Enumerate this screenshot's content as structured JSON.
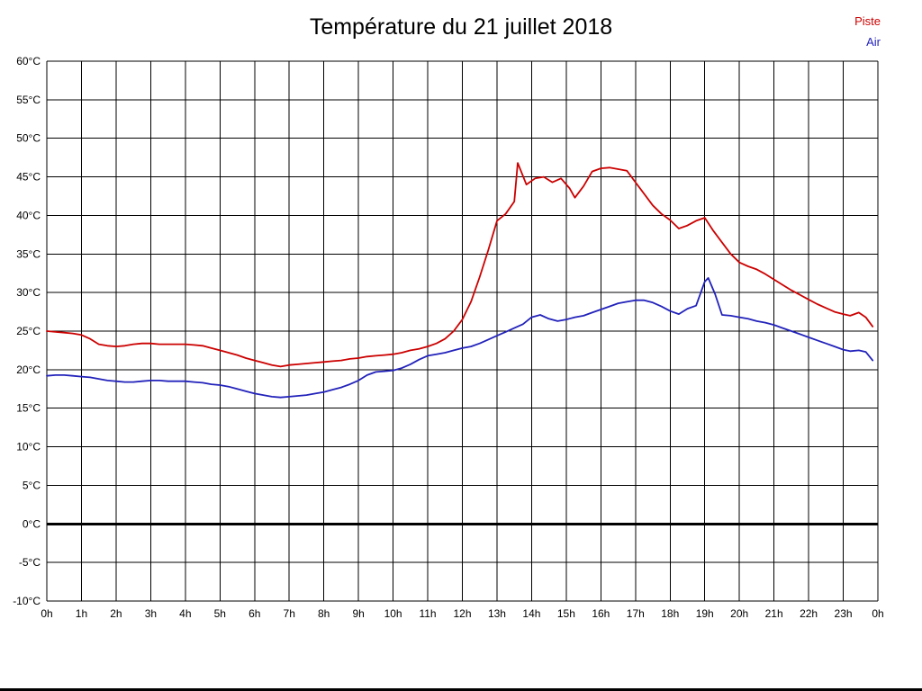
{
  "legend": {
    "piste": "Piste",
    "air": "Air"
  },
  "chart_data": {
    "type": "line",
    "title": "Température du 21 juillet 2018",
    "xlabel": "",
    "ylabel": "",
    "xlim": [
      0,
      24
    ],
    "ylim": [
      -10,
      60
    ],
    "y_tick_step": 5,
    "y_tick_suffix": "°C",
    "x_tick_labels": [
      "0h",
      "1h",
      "2h",
      "3h",
      "4h",
      "5h",
      "6h",
      "7h",
      "8h",
      "9h",
      "10h",
      "11h",
      "12h",
      "13h",
      "14h",
      "15h",
      "16h",
      "17h",
      "18h",
      "19h",
      "20h",
      "21h",
      "22h",
      "23h",
      "0h"
    ],
    "grid": true,
    "grid_color": "#000000",
    "zero_line_value": 0,
    "legend_position": "top-right",
    "series": [
      {
        "name": "Piste",
        "color": "#cc0000",
        "points": [
          [
            0,
            25.0
          ],
          [
            0.25,
            24.9
          ],
          [
            0.5,
            24.8
          ],
          [
            0.75,
            24.7
          ],
          [
            1,
            24.5
          ],
          [
            1.25,
            24.0
          ],
          [
            1.5,
            23.3
          ],
          [
            1.75,
            23.1
          ],
          [
            2,
            23.0
          ],
          [
            2.25,
            23.1
          ],
          [
            2.5,
            23.3
          ],
          [
            2.75,
            23.4
          ],
          [
            3,
            23.4
          ],
          [
            3.25,
            23.3
          ],
          [
            3.5,
            23.3
          ],
          [
            3.75,
            23.3
          ],
          [
            4,
            23.3
          ],
          [
            4.25,
            23.2
          ],
          [
            4.5,
            23.1
          ],
          [
            4.75,
            22.8
          ],
          [
            5,
            22.5
          ],
          [
            5.25,
            22.2
          ],
          [
            5.5,
            21.9
          ],
          [
            5.75,
            21.5
          ],
          [
            6,
            21.2
          ],
          [
            6.25,
            20.9
          ],
          [
            6.5,
            20.6
          ],
          [
            6.75,
            20.4
          ],
          [
            7,
            20.6
          ],
          [
            7.25,
            20.7
          ],
          [
            7.5,
            20.8
          ],
          [
            7.75,
            20.9
          ],
          [
            8,
            21.0
          ],
          [
            8.25,
            21.1
          ],
          [
            8.5,
            21.2
          ],
          [
            8.75,
            21.4
          ],
          [
            9,
            21.5
          ],
          [
            9.25,
            21.7
          ],
          [
            9.5,
            21.8
          ],
          [
            9.75,
            21.9
          ],
          [
            10,
            22.0
          ],
          [
            10.25,
            22.2
          ],
          [
            10.5,
            22.5
          ],
          [
            10.75,
            22.7
          ],
          [
            11,
            23.0
          ],
          [
            11.25,
            23.4
          ],
          [
            11.5,
            24.0
          ],
          [
            11.75,
            25.0
          ],
          [
            12,
            26.5
          ],
          [
            12.25,
            28.8
          ],
          [
            12.5,
            32.0
          ],
          [
            12.75,
            35.5
          ],
          [
            13,
            39.3
          ],
          [
            13.25,
            40.2
          ],
          [
            13.5,
            41.8
          ],
          [
            13.6,
            46.8
          ],
          [
            13.85,
            44.0
          ],
          [
            14.1,
            44.8
          ],
          [
            14.35,
            45.0
          ],
          [
            14.6,
            44.3
          ],
          [
            14.85,
            44.8
          ],
          [
            15.1,
            43.5
          ],
          [
            15.25,
            42.3
          ],
          [
            15.5,
            43.8
          ],
          [
            15.75,
            45.7
          ],
          [
            16,
            46.1
          ],
          [
            16.25,
            46.2
          ],
          [
            16.5,
            46.0
          ],
          [
            16.75,
            45.8
          ],
          [
            17,
            44.3
          ],
          [
            17.25,
            42.8
          ],
          [
            17.5,
            41.3
          ],
          [
            17.75,
            40.2
          ],
          [
            18,
            39.4
          ],
          [
            18.25,
            38.3
          ],
          [
            18.5,
            38.7
          ],
          [
            18.75,
            39.3
          ],
          [
            19,
            39.7
          ],
          [
            19.25,
            38.0
          ],
          [
            19.5,
            36.5
          ],
          [
            19.75,
            35.0
          ],
          [
            20,
            33.9
          ],
          [
            20.25,
            33.4
          ],
          [
            20.5,
            33.0
          ],
          [
            20.75,
            32.4
          ],
          [
            21,
            31.7
          ],
          [
            21.25,
            31.0
          ],
          [
            21.5,
            30.3
          ],
          [
            21.75,
            29.7
          ],
          [
            22,
            29.1
          ],
          [
            22.25,
            28.5
          ],
          [
            22.5,
            28.0
          ],
          [
            22.75,
            27.5
          ],
          [
            23,
            27.2
          ],
          [
            23.2,
            27.0
          ],
          [
            23.45,
            27.4
          ],
          [
            23.65,
            26.8
          ],
          [
            23.85,
            25.6
          ]
        ]
      },
      {
        "name": "Air",
        "color": "#2222bb",
        "points": [
          [
            0,
            19.2
          ],
          [
            0.25,
            19.3
          ],
          [
            0.5,
            19.3
          ],
          [
            0.75,
            19.2
          ],
          [
            1,
            19.1
          ],
          [
            1.25,
            19.0
          ],
          [
            1.5,
            18.8
          ],
          [
            1.75,
            18.6
          ],
          [
            2,
            18.5
          ],
          [
            2.25,
            18.4
          ],
          [
            2.5,
            18.4
          ],
          [
            2.75,
            18.5
          ],
          [
            3,
            18.6
          ],
          [
            3.25,
            18.6
          ],
          [
            3.5,
            18.5
          ],
          [
            3.75,
            18.5
          ],
          [
            4,
            18.5
          ],
          [
            4.25,
            18.4
          ],
          [
            4.5,
            18.3
          ],
          [
            4.75,
            18.1
          ],
          [
            5,
            18.0
          ],
          [
            5.25,
            17.8
          ],
          [
            5.5,
            17.5
          ],
          [
            5.75,
            17.2
          ],
          [
            6,
            16.9
          ],
          [
            6.25,
            16.7
          ],
          [
            6.5,
            16.5
          ],
          [
            6.75,
            16.4
          ],
          [
            7,
            16.5
          ],
          [
            7.25,
            16.6
          ],
          [
            7.5,
            16.7
          ],
          [
            7.75,
            16.9
          ],
          [
            8,
            17.1
          ],
          [
            8.25,
            17.4
          ],
          [
            8.5,
            17.7
          ],
          [
            8.75,
            18.1
          ],
          [
            9,
            18.6
          ],
          [
            9.25,
            19.3
          ],
          [
            9.5,
            19.7
          ],
          [
            9.75,
            19.8
          ],
          [
            10,
            19.9
          ],
          [
            10.25,
            20.2
          ],
          [
            10.5,
            20.7
          ],
          [
            10.75,
            21.3
          ],
          [
            11,
            21.8
          ],
          [
            11.25,
            22.0
          ],
          [
            11.5,
            22.2
          ],
          [
            11.75,
            22.5
          ],
          [
            12,
            22.8
          ],
          [
            12.25,
            23.0
          ],
          [
            12.5,
            23.4
          ],
          [
            12.75,
            23.9
          ],
          [
            13,
            24.4
          ],
          [
            13.25,
            24.9
          ],
          [
            13.5,
            25.4
          ],
          [
            13.75,
            25.9
          ],
          [
            14,
            26.8
          ],
          [
            14.25,
            27.1
          ],
          [
            14.5,
            26.6
          ],
          [
            14.75,
            26.3
          ],
          [
            15,
            26.5
          ],
          [
            15.25,
            26.8
          ],
          [
            15.5,
            27.0
          ],
          [
            15.75,
            27.4
          ],
          [
            16,
            27.8
          ],
          [
            16.25,
            28.2
          ],
          [
            16.5,
            28.6
          ],
          [
            16.75,
            28.8
          ],
          [
            17,
            29.0
          ],
          [
            17.25,
            29.0
          ],
          [
            17.5,
            28.7
          ],
          [
            17.75,
            28.2
          ],
          [
            18,
            27.6
          ],
          [
            18.25,
            27.2
          ],
          [
            18.5,
            27.9
          ],
          [
            18.75,
            28.3
          ],
          [
            19,
            31.4
          ],
          [
            19.1,
            31.9
          ],
          [
            19.3,
            29.8
          ],
          [
            19.5,
            27.1
          ],
          [
            19.75,
            27.0
          ],
          [
            20,
            26.8
          ],
          [
            20.25,
            26.6
          ],
          [
            20.5,
            26.3
          ],
          [
            20.75,
            26.1
          ],
          [
            21,
            25.8
          ],
          [
            21.25,
            25.4
          ],
          [
            21.5,
            25.0
          ],
          [
            21.75,
            24.6
          ],
          [
            22,
            24.2
          ],
          [
            22.25,
            23.8
          ],
          [
            22.5,
            23.4
          ],
          [
            22.75,
            23.0
          ],
          [
            23,
            22.6
          ],
          [
            23.2,
            22.4
          ],
          [
            23.45,
            22.5
          ],
          [
            23.65,
            22.3
          ],
          [
            23.85,
            21.2
          ]
        ]
      }
    ]
  }
}
